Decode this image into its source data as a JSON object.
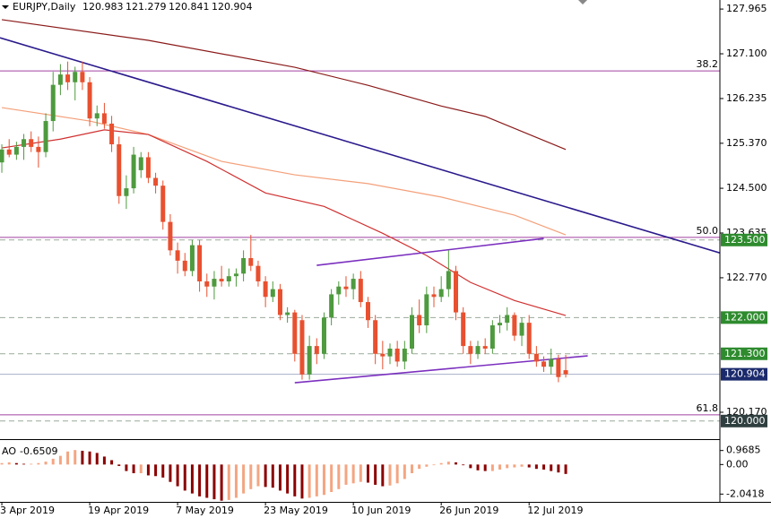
{
  "chart_data": {
    "type": "candlestick",
    "title": "EURJPY,Daily",
    "header_values": [
      120.983,
      121.279,
      120.841,
      120.904
    ],
    "xlim": [
      -0.25,
      98.05
    ],
    "ylim": [
      119.65,
      128.14
    ],
    "yticks": [
      127.965,
      {
        "value": 127.1,
        "label": "127.100"
      },
      126.235,
      {
        "value": 125.37,
        "label": "125.370"
      },
      {
        "value": 124.5,
        "label": "124.500"
      },
      123.635,
      {
        "value": 122.77,
        "label": "122.770"
      },
      {
        "value": 120.17,
        "label": "120.170"
      }
    ],
    "categories": [
      "3 Apr 2019",
      null,
      null,
      null,
      null,
      null,
      null,
      null,
      null,
      null,
      null,
      null,
      "19 Apr 2019",
      null,
      null,
      null,
      null,
      null,
      null,
      null,
      null,
      null,
      null,
      null,
      "7 May 2019",
      null,
      null,
      null,
      null,
      null,
      null,
      null,
      null,
      null,
      null,
      null,
      "23 May 2019",
      null,
      null,
      null,
      null,
      null,
      null,
      null,
      null,
      null,
      null,
      null,
      "10 Jun 2019",
      null,
      null,
      null,
      null,
      null,
      null,
      null,
      null,
      null,
      null,
      null,
      "26 Jun 2019",
      null,
      null,
      null,
      null,
      null,
      null,
      null,
      null,
      null,
      null,
      null,
      "12 Jul 2019",
      null,
      null,
      null,
      null,
      null
    ],
    "open": [
      125.0,
      125.25,
      125.15,
      125.3,
      125.45,
      125.3,
      125.2,
      125.8,
      126.5,
      126.7,
      126.55,
      126.75,
      126.55,
      125.85,
      125.95,
      125.75,
      125.35,
      124.35,
      124.5,
      124.85,
      125.1,
      124.7,
      124.55,
      123.85,
      123.3,
      123.1,
      122.9,
      123.4,
      122.7,
      122.6,
      122.75,
      122.7,
      122.8,
      122.85,
      123.15,
      123.0,
      122.7,
      122.4,
      122.55,
      122.05,
      122.1,
      121.95,
      120.9,
      121.45,
      121.3,
      122.0,
      122.45,
      122.6,
      122.55,
      122.75,
      122.3,
      121.95,
      121.3,
      121.25,
      121.4,
      121.15,
      121.4,
      122.05,
      121.85,
      122.45,
      122.4,
      122.55,
      122.9,
      122.1,
      121.45,
      121.3,
      121.45,
      121.4,
      121.85,
      121.9,
      122.05,
      121.65,
      121.9,
      121.3,
      121.15,
      121.05,
      121.2,
      120.983
    ],
    "high": [
      125.35,
      125.45,
      125.4,
      125.55,
      125.6,
      125.5,
      125.95,
      126.75,
      126.9,
      126.95,
      126.85,
      126.95,
      126.65,
      126.1,
      126.15,
      125.9,
      125.5,
      124.75,
      125.3,
      125.2,
      125.2,
      124.8,
      124.65,
      124.0,
      123.45,
      123.25,
      123.5,
      123.5,
      122.85,
      122.9,
      123.0,
      122.95,
      122.95,
      123.3,
      123.6,
      123.1,
      122.8,
      122.7,
      122.65,
      122.2,
      122.15,
      122.05,
      121.65,
      121.6,
      122.1,
      122.55,
      122.7,
      122.8,
      122.85,
      122.9,
      122.4,
      122.05,
      121.55,
      121.5,
      121.55,
      121.55,
      122.2,
      122.35,
      122.6,
      122.6,
      122.8,
      123.3,
      123.0,
      122.2,
      121.55,
      121.55,
      121.6,
      121.95,
      122.05,
      122.2,
      122.1,
      122.0,
      122.05,
      121.45,
      121.25,
      121.4,
      121.28,
      121.279
    ],
    "low": [
      124.8,
      125.1,
      125.05,
      125.05,
      125.2,
      124.9,
      125.1,
      125.6,
      126.3,
      126.4,
      126.2,
      126.4,
      125.7,
      125.7,
      125.65,
      125.2,
      124.2,
      124.1,
      124.4,
      124.7,
      124.6,
      124.4,
      123.7,
      123.2,
      122.85,
      122.8,
      122.8,
      122.5,
      122.4,
      122.35,
      122.6,
      122.6,
      122.6,
      122.7,
      122.9,
      122.6,
      122.2,
      122.3,
      121.95,
      121.9,
      121.15,
      120.8,
      120.8,
      121.1,
      121.2,
      121.85,
      122.25,
      122.4,
      122.35,
      122.2,
      121.8,
      121.1,
      121.0,
      121.1,
      121.05,
      121.0,
      121.3,
      121.7,
      121.7,
      122.2,
      122.3,
      122.4,
      121.95,
      121.3,
      121.1,
      121.2,
      121.3,
      121.3,
      121.7,
      121.75,
      121.55,
      121.45,
      121.2,
      121.05,
      120.95,
      120.9,
      120.75,
      120.841
    ],
    "close": [
      125.25,
      125.15,
      125.3,
      125.45,
      125.3,
      125.2,
      125.8,
      126.5,
      126.7,
      126.55,
      126.75,
      126.55,
      125.85,
      125.95,
      125.75,
      125.35,
      124.35,
      124.5,
      125.15,
      125.1,
      124.7,
      124.55,
      123.85,
      123.3,
      123.1,
      122.9,
      123.4,
      122.7,
      122.6,
      122.75,
      122.7,
      122.8,
      122.85,
      123.15,
      123.0,
      122.7,
      122.4,
      122.55,
      122.05,
      122.1,
      121.3,
      120.9,
      121.45,
      121.3,
      122.0,
      122.45,
      122.6,
      122.55,
      122.75,
      122.3,
      121.95,
      121.3,
      121.25,
      121.4,
      121.15,
      121.4,
      122.05,
      121.85,
      122.45,
      122.4,
      122.55,
      122.9,
      122.1,
      121.45,
      121.3,
      121.45,
      121.4,
      121.85,
      121.9,
      122.05,
      121.65,
      121.9,
      121.3,
      121.15,
      121.05,
      121.2,
      120.85,
      120.904
    ],
    "up_color": "#4e9a3e",
    "down_color": "#e8502f",
    "moving_averages": [
      {
        "color": "#8b1a1a",
        "x": [
          0,
          20,
          40,
          50,
          60,
          66,
          77
        ],
        "values": [
          127.76,
          127.36,
          126.84,
          126.49,
          126.09,
          125.89,
          125.25
        ]
      },
      {
        "color": "#f4a07a",
        "x": [
          0,
          12,
          20,
          30,
          40,
          50,
          60,
          70,
          77
        ],
        "values": [
          126.06,
          125.8,
          125.54,
          125.02,
          124.76,
          124.59,
          124.33,
          123.98,
          123.6
        ]
      },
      {
        "color": "#d03030",
        "x": [
          0,
          8,
          14,
          20,
          28,
          36,
          44,
          52,
          58,
          64,
          70,
          77
        ],
        "values": [
          125.28,
          125.45,
          125.63,
          125.54,
          125.02,
          124.41,
          124.15,
          123.63,
          123.2,
          122.68,
          122.33,
          122.04
        ]
      }
    ],
    "trend_lines": [
      {
        "color": "#2a1a8c",
        "x": [
          -0.25,
          98.05
        ],
        "values": [
          127.41,
          123.25
        ]
      },
      {
        "color": "#7b2fbf",
        "x": [
          43,
          74
        ],
        "values": [
          123.01,
          123.53
        ]
      },
      {
        "color": "#7b2fbf",
        "x": [
          40,
          80
        ],
        "values": [
          120.74,
          121.26
        ]
      }
    ],
    "fib_color": "#a040a0",
    "fib_levels": [
      {
        "label": "38.2",
        "value": 126.77
      },
      {
        "label": "50.0",
        "value": 123.55
      },
      {
        "label": "61.8",
        "value": 120.12
      }
    ],
    "price_levels": [
      {
        "value": 123.5,
        "label": "123.500",
        "color": "#2e8b2e"
      },
      {
        "value": 122.0,
        "label": "122.000",
        "color": "#2e8b2e"
      },
      {
        "value": 121.3,
        "label": "121.300",
        "color": "#2e8b2e"
      },
      {
        "value": 120.904,
        "color": "#1a2a6c"
      },
      {
        "value": 120.0,
        "label": "120.000",
        "color": "#2f3f3f"
      }
    ],
    "indicator": {
      "name": "AO",
      "ylim": [
        -2.58,
        1.63
      ],
      "yticks": [
        0.9685,
        {
          "value": 0,
          "label": "0.00"
        },
        -2.0418
      ],
      "up_color": "#f4a582",
      "down_color": "#8b0000",
      "values": [
        0.1,
        0.15,
        0.1,
        0.05,
        0.05,
        0.1,
        0.2,
        0.4,
        0.6,
        0.9,
        1.0,
        0.95,
        0.9,
        0.8,
        0.55,
        0.3,
        -0.1,
        -0.45,
        -0.6,
        -0.6,
        -0.75,
        -0.8,
        -0.9,
        -1.2,
        -1.5,
        -1.8,
        -2.0,
        -2.2,
        -2.3,
        -2.4,
        -2.5,
        -2.45,
        -2.3,
        -2.0,
        -1.7,
        -1.5,
        -1.55,
        -1.6,
        -1.8,
        -2.0,
        -2.2,
        -2.35,
        -2.3,
        -2.2,
        -2.1,
        -1.9,
        -1.7,
        -1.4,
        -1.3,
        -1.2,
        -1.25,
        -1.4,
        -1.5,
        -1.45,
        -1.3,
        -1.0,
        -0.6,
        -0.3,
        -0.15,
        -0.05,
        0.1,
        0.2,
        0.15,
        -0.05,
        -0.25,
        -0.4,
        -0.45,
        -0.45,
        -0.35,
        -0.25,
        -0.2,
        -0.15,
        -0.2,
        -0.3,
        -0.35,
        -0.45,
        -0.55,
        -0.6509
      ]
    }
  }
}
